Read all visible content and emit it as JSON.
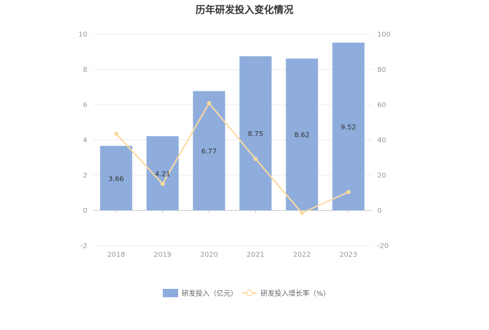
{
  "chart_data": {
    "type": "bar",
    "title": "历年研发投入变化情况",
    "categories": [
      "2018",
      "2019",
      "2020",
      "2021",
      "2022",
      "2023"
    ],
    "series": [
      {
        "name": "研发投入（亿元）",
        "type": "bar",
        "axis": "left",
        "values": [
          3.66,
          4.21,
          6.77,
          8.75,
          8.62,
          9.52
        ],
        "color": "#8eaddc"
      },
      {
        "name": "研发投入增长率（%）",
        "type": "line",
        "axis": "right",
        "values": [
          43.5,
          15.0,
          60.8,
          29.2,
          -1.5,
          10.4
        ],
        "color": "#fbd9a0"
      }
    ],
    "ylim_left": [
      -2,
      10
    ],
    "yticks_left": [
      -2,
      0,
      2,
      4,
      6,
      8,
      10
    ],
    "ylim_right": [
      -20,
      100
    ],
    "yticks_right": [
      -20,
      0,
      20,
      40,
      60,
      80,
      100
    ],
    "grid": true,
    "legend_position": "bottom"
  }
}
